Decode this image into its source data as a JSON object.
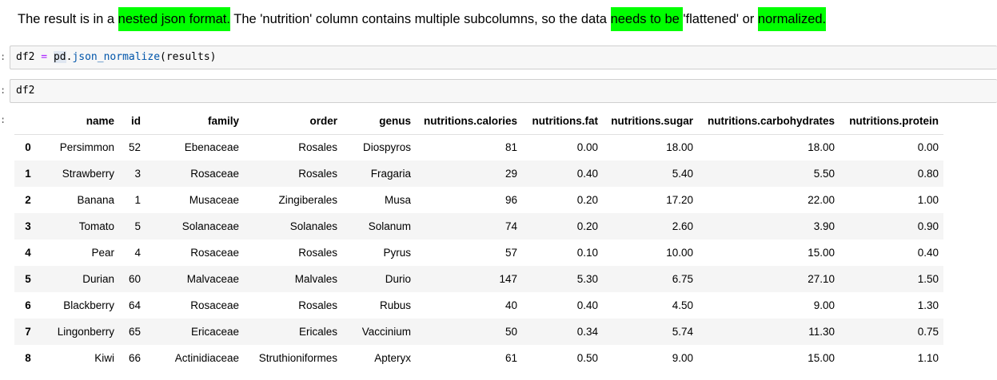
{
  "markdown": {
    "segments": [
      {
        "text": "The result is in a ",
        "highlight": false
      },
      {
        "text": "nested json format.",
        "highlight": true
      },
      {
        "text": " The 'nutrition' column contains multiple subcolumns, so the data ",
        "highlight": false
      },
      {
        "text": "needs to be ",
        "highlight": true
      },
      {
        "text": "'flattened' or ",
        "highlight": false
      },
      {
        "text": "normalized.",
        "highlight": true
      }
    ]
  },
  "cells": [
    {
      "prompt": ":",
      "var": "df2",
      "op": " = ",
      "obj": "pd",
      "dot": ".",
      "fn": "json_normalize",
      "args": "(results)"
    },
    {
      "prompt": ":",
      "code": "df2"
    }
  ],
  "output_prompt": ":",
  "highlight_color": "#00ff00",
  "table": {
    "columns": [
      "name",
      "id",
      "family",
      "order",
      "genus",
      "nutritions.calories",
      "nutritions.fat",
      "nutritions.sugar",
      "nutritions.carbohydrates",
      "nutritions.protein"
    ],
    "rows": [
      {
        "index": "0",
        "cells": [
          "Persimmon",
          "52",
          "Ebenaceae",
          "Rosales",
          "Diospyros",
          "81",
          "0.00",
          "18.00",
          "18.00",
          "0.00"
        ]
      },
      {
        "index": "1",
        "cells": [
          "Strawberry",
          "3",
          "Rosaceae",
          "Rosales",
          "Fragaria",
          "29",
          "0.40",
          "5.40",
          "5.50",
          "0.80"
        ]
      },
      {
        "index": "2",
        "cells": [
          "Banana",
          "1",
          "Musaceae",
          "Zingiberales",
          "Musa",
          "96",
          "0.20",
          "17.20",
          "22.00",
          "1.00"
        ]
      },
      {
        "index": "3",
        "cells": [
          "Tomato",
          "5",
          "Solanaceae",
          "Solanales",
          "Solanum",
          "74",
          "0.20",
          "2.60",
          "3.90",
          "0.90"
        ]
      },
      {
        "index": "4",
        "cells": [
          "Pear",
          "4",
          "Rosaceae",
          "Rosales",
          "Pyrus",
          "57",
          "0.10",
          "10.00",
          "15.00",
          "0.40"
        ]
      },
      {
        "index": "5",
        "cells": [
          "Durian",
          "60",
          "Malvaceae",
          "Malvales",
          "Durio",
          "147",
          "5.30",
          "6.75",
          "27.10",
          "1.50"
        ]
      },
      {
        "index": "6",
        "cells": [
          "Blackberry",
          "64",
          "Rosaceae",
          "Rosales",
          "Rubus",
          "40",
          "0.40",
          "4.50",
          "9.00",
          "1.30"
        ]
      },
      {
        "index": "7",
        "cells": [
          "Lingonberry",
          "65",
          "Ericaceae",
          "Ericales",
          "Vaccinium",
          "50",
          "0.34",
          "5.74",
          "11.30",
          "0.75"
        ]
      },
      {
        "index": "8",
        "cells": [
          "Kiwi",
          "66",
          "Actinidiaceae",
          "Struthioniformes",
          "Apteryx",
          "61",
          "0.50",
          "9.00",
          "15.00",
          "1.10"
        ]
      }
    ]
  }
}
